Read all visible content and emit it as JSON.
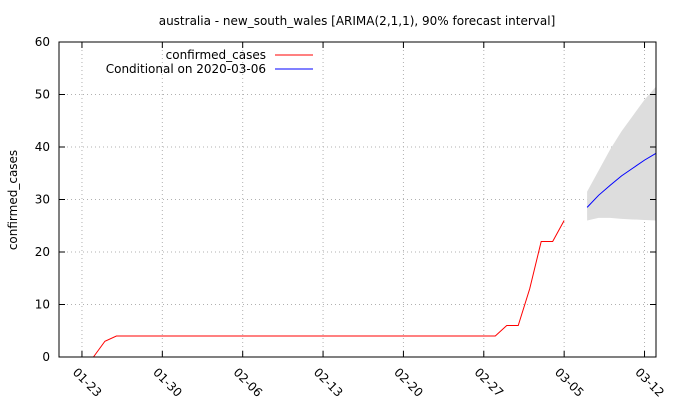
{
  "chart_data": {
    "type": "line",
    "title": "australia - new_south_wales [ARIMA(2,1,1), 90% forecast interval]",
    "xlabel": "",
    "ylabel": "confirmed_cases",
    "xlim": [
      "2020-01-21",
      "2020-03-13"
    ],
    "ylim": [
      0,
      60
    ],
    "yticks": [
      0,
      10,
      20,
      30,
      40,
      50,
      60
    ],
    "xticks": [
      {
        "date": "2020-01-23",
        "label": "01-23"
      },
      {
        "date": "2020-01-30",
        "label": "01-30"
      },
      {
        "date": "2020-02-06",
        "label": "02-06"
      },
      {
        "date": "2020-02-13",
        "label": "02-13"
      },
      {
        "date": "2020-02-20",
        "label": "02-20"
      },
      {
        "date": "2020-02-27",
        "label": "02-27"
      },
      {
        "date": "2020-03-05",
        "label": "03-05"
      },
      {
        "date": "2020-03-12",
        "label": "03-12"
      }
    ],
    "grid": true,
    "legend_position": "top-left",
    "series": [
      {
        "name": "confirmed_cases",
        "color": "#ff0000",
        "points": [
          [
            "2020-01-24",
            0
          ],
          [
            "2020-01-25",
            3
          ],
          [
            "2020-01-26",
            4
          ],
          [
            "2020-01-27",
            4
          ],
          [
            "2020-01-28",
            4
          ],
          [
            "2020-01-29",
            4
          ],
          [
            "2020-01-30",
            4
          ],
          [
            "2020-01-31",
            4
          ],
          [
            "2020-02-01",
            4
          ],
          [
            "2020-02-02",
            4
          ],
          [
            "2020-02-03",
            4
          ],
          [
            "2020-02-04",
            4
          ],
          [
            "2020-02-05",
            4
          ],
          [
            "2020-02-06",
            4
          ],
          [
            "2020-02-07",
            4
          ],
          [
            "2020-02-08",
            4
          ],
          [
            "2020-02-09",
            4
          ],
          [
            "2020-02-10",
            4
          ],
          [
            "2020-02-11",
            4
          ],
          [
            "2020-02-12",
            4
          ],
          [
            "2020-02-13",
            4
          ],
          [
            "2020-02-14",
            4
          ],
          [
            "2020-02-15",
            4
          ],
          [
            "2020-02-16",
            4
          ],
          [
            "2020-02-17",
            4
          ],
          [
            "2020-02-18",
            4
          ],
          [
            "2020-02-19",
            4
          ],
          [
            "2020-02-20",
            4
          ],
          [
            "2020-02-21",
            4
          ],
          [
            "2020-02-22",
            4
          ],
          [
            "2020-02-23",
            4
          ],
          [
            "2020-02-24",
            4
          ],
          [
            "2020-02-25",
            4
          ],
          [
            "2020-02-26",
            4
          ],
          [
            "2020-02-27",
            4
          ],
          [
            "2020-02-28",
            4
          ],
          [
            "2020-02-29",
            6
          ],
          [
            "2020-03-01",
            6
          ],
          [
            "2020-03-02",
            13
          ],
          [
            "2020-03-03",
            22
          ],
          [
            "2020-03-04",
            22
          ],
          [
            "2020-03-05",
            26
          ]
        ]
      },
      {
        "name": "Conditional on 2020-03-06",
        "color": "#0000ff",
        "points": [
          [
            "2020-03-07",
            28.5
          ],
          [
            "2020-03-08",
            30.8
          ],
          [
            "2020-03-09",
            32.7
          ],
          [
            "2020-03-10",
            34.5
          ],
          [
            "2020-03-11",
            36.0
          ],
          [
            "2020-03-12",
            37.5
          ],
          [
            "2020-03-13",
            38.8
          ]
        ],
        "interval": {
          "level": "90%",
          "color": "#dddddd",
          "upper": [
            31.5,
            35.5,
            39.5,
            43,
            46,
            49,
            51.5
          ],
          "lower": [
            26,
            26.5,
            26.5,
            26.3,
            26.2,
            26.1,
            26
          ]
        }
      }
    ]
  }
}
